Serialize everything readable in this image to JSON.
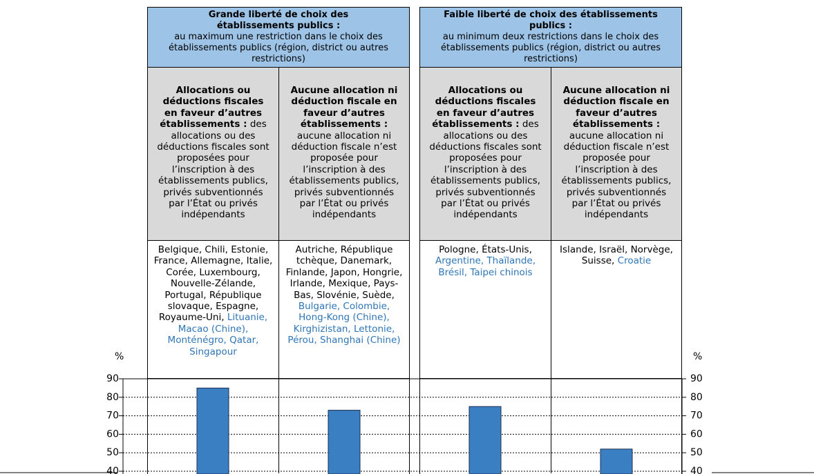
{
  "table": {
    "panels": [
      {
        "title": "Grande liberté de choix des établissements publics :",
        "description": "au maximum une restriction dans le choix des établissements publics (région, district ou autres restrictions)",
        "columns": [
          {
            "heading": "Allocations ou déductions fiscales en faveur d’autres établissements :",
            "description": "des allocations ou des déductions fiscales sont proposées pour l’inscription à des établissements publics, privés subventionnés par l’État ou privés indépendants",
            "countries": "Belgique, Chili, Estonie, France, Allemagne, Italie, Corée, Luxembourg, Nouvelle-Zélande, Portugal, République slovaque, Espagne, Royaume-Uni,",
            "partners": "Lituanie, Macao (Chine), Monténégro, Qatar, Singapour"
          },
          {
            "heading": "Aucune allocation ni déduction fiscale en faveur d’autres établissements :",
            "description": "aucune allocation ni déduction fiscale n’est proposée pour l’inscription à des établissements publics, privés subventionnés par l’État ou privés indépendants",
            "countries": "Autriche, République tchèque, Danemark, Finlande, Japon, Hongrie, Irlande, Mexique, Pays-Bas, Slovénie, Suède,",
            "partners": "Bulgarie, Colombie, Hong-Kong (Chine), Kirghizistan, Lettonie, Pérou, Shanghai (Chine)"
          }
        ]
      },
      {
        "title": "Faible liberté de choix des établissements publics :",
        "description": "au minimum deux restrictions dans le choix des établissements publics (région, district ou autres restrictions)",
        "columns": [
          {
            "heading": "Allocations ou déductions fiscales en faveur d’autres établissements :",
            "description": "des allocations ou des déductions fiscales sont proposées pour l’inscription à des établissements publics, privés subventionnés par l’État ou privés indépendants",
            "countries": "Pologne, États-Unis,",
            "partners": "Argentine, Thaïlande, Brésil, Taipei chinois"
          },
          {
            "heading": "Aucune allocation ni déduction fiscale en faveur d’autres établissements :",
            "description": "aucune allocation ni déduction fiscale n’est proposée pour l’inscription à des établissements publics, privés subventionnés par l’État ou privés indépendants",
            "countries": "Islande, Israël, Norvège, Suisse,",
            "partners": "Croatie"
          }
        ]
      }
    ]
  },
  "chart_data": {
    "type": "bar",
    "y_label": "%",
    "values": [
      85,
      73,
      75,
      52
    ],
    "color": "#3a7fc1",
    "ylim": [
      40,
      90
    ],
    "yticks": [
      40,
      50,
      60,
      70,
      80,
      90
    ],
    "grid": true
  }
}
